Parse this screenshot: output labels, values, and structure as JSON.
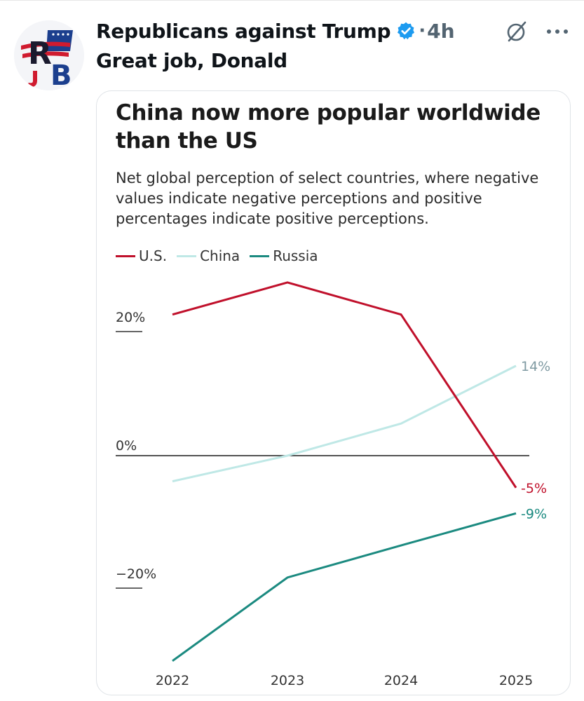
{
  "post": {
    "author_name": "Republicans against Trump",
    "dot": "·",
    "time": "4h",
    "text": "Great job, Donald"
  },
  "icons": {
    "avatar": "rb-logo-avatar",
    "verified": "verified-badge-icon",
    "grok": "grok-icon",
    "more": "more-icon"
  },
  "colors": {
    "us": "#c0102b",
    "china": "#bfe8e6",
    "russia": "#1b8a80",
    "china_label": "#7f9aa2",
    "verified": "#1d9bf0"
  },
  "chart_data": {
    "type": "line",
    "title": "China now more popular worldwide than the US",
    "subtitle": "Net global perception of select countries, where negative values indicate negative perceptions and positive percentages indicate positive perceptions.",
    "x": [
      "2022",
      "2023",
      "2024",
      "2025"
    ],
    "series": [
      {
        "name": "U.S.",
        "color": "#c0102b",
        "values": [
          22,
          27,
          22,
          -5
        ],
        "end_label": "-5%"
      },
      {
        "name": "China",
        "color": "#bfe8e6",
        "values": [
          -4,
          0,
          5,
          14
        ],
        "end_label": "14%"
      },
      {
        "name": "Russia",
        "color": "#1b8a80",
        "values": [
          -32,
          -19,
          -14,
          -9
        ],
        "end_label": "-9%"
      }
    ],
    "yticks": [
      {
        "value": 20,
        "label": "20%"
      },
      {
        "value": 0,
        "label": "0%"
      },
      {
        "value": -20,
        "label": "−20%"
      }
    ],
    "ylim": [
      -32,
      27
    ],
    "zero_line": true,
    "grid": false,
    "legend_position": "top-left"
  }
}
